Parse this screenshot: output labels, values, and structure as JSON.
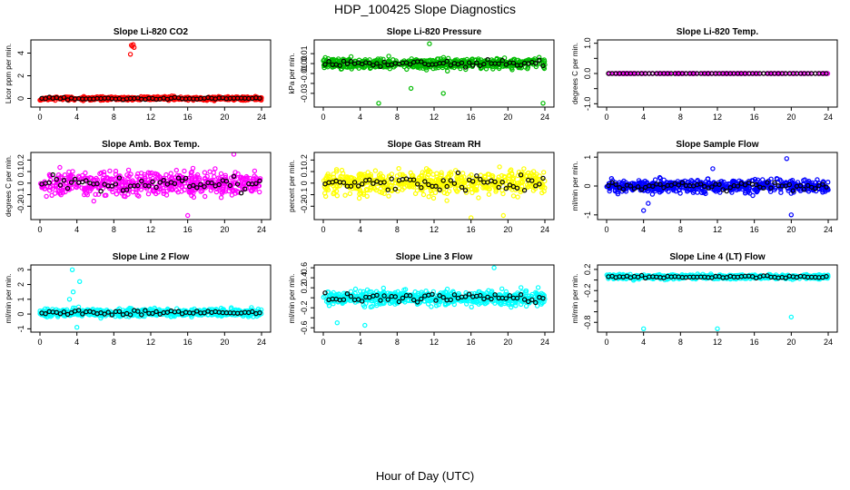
{
  "page": {
    "title": "HDP_100425  Slope Diagnostics",
    "x_axis_title": "Hour of Day (UTC)"
  },
  "chart_data": [
    {
      "id": "co2",
      "type": "scatter",
      "title": "Slope Li-820 CO2",
      "ylabel": "Licor ppm per min.",
      "xlim": [
        0,
        24
      ],
      "ylim": [
        -0.6,
        5
      ],
      "yticks": [
        0,
        2,
        4
      ],
      "color": "#ff0000",
      "spread": 0.15,
      "center": 0.0,
      "n": 600,
      "seed": 11,
      "outliers": [
        [
          9.9,
          4.7
        ],
        [
          10.0,
          4.6
        ],
        [
          10.1,
          4.75
        ],
        [
          9.8,
          3.9
        ],
        [
          10.2,
          4.5
        ]
      ]
    },
    {
      "id": "pressure",
      "type": "scatter",
      "title": "Slope Li-820 Pressure",
      "ylabel": "kPa per min.",
      "xlim": [
        0,
        24
      ],
      "ylim": [
        -0.042,
        0.022
      ],
      "yticks": [
        -0.03,
        -0.02,
        -0.01,
        0.0,
        0.01
      ],
      "yticklabels": [
        "-0.03",
        "",
        "-0.01",
        "0.00",
        "0.01"
      ],
      "color": "#00bb00",
      "spread": 0.005,
      "center": 0.0,
      "n": 600,
      "seed": 23,
      "outliers": [
        [
          6.0,
          -0.04
        ],
        [
          11.5,
          0.02
        ],
        [
          23.8,
          -0.04
        ],
        [
          9.5,
          -0.025
        ],
        [
          13.0,
          -0.03
        ]
      ]
    },
    {
      "id": "temp",
      "type": "scatter",
      "title": "Slope Li-820 Temp.",
      "ylabel": "degrees C per min.",
      "xlim": [
        0,
        24
      ],
      "ylim": [
        -1.05,
        1.05
      ],
      "yticks": [
        -1.0,
        -0.5,
        0.0,
        0.5,
        1.0
      ],
      "yticklabels": [
        "-1.0",
        "",
        "0.0",
        "",
        "1.0"
      ],
      "color": "#ff00ff",
      "spread": 0.0,
      "center": 0.0,
      "n": 160,
      "seed": 5,
      "outliers": []
    },
    {
      "id": "box",
      "type": "scatter",
      "title": "Slope Amb. Box Temp.",
      "ylabel": "degrees C per min.",
      "xlim": [
        0,
        24
      ],
      "ylim": [
        -0.3,
        0.25
      ],
      "yticks": [
        -0.2,
        -0.1,
        0.0,
        0.1,
        0.2
      ],
      "color": "#ff00ff",
      "spread": 0.1,
      "center": 0.0,
      "n": 550,
      "seed": 37,
      "outliers": [
        [
          16.0,
          -0.28
        ],
        [
          21.0,
          0.25
        ]
      ]
    },
    {
      "id": "rh",
      "type": "scatter",
      "title": "Slope Gas Stream RH",
      "ylabel": "percent per min.",
      "xlim": [
        0,
        24
      ],
      "ylim": [
        -0.3,
        0.25
      ],
      "yticks": [
        -0.2,
        -0.1,
        0.0,
        0.1,
        0.2
      ],
      "color": "#ffff00",
      "spread": 0.1,
      "center": 0.0,
      "n": 550,
      "seed": 41,
      "outliers": [
        [
          16.0,
          -0.3
        ],
        [
          19.5,
          -0.28
        ]
      ]
    },
    {
      "id": "sample",
      "type": "scatter",
      "title": "Slope Sample Flow",
      "ylabel": "ml/min per min.",
      "xlim": [
        0,
        24
      ],
      "ylim": [
        -1.1,
        1.1
      ],
      "yticks": [
        -1,
        0,
        1
      ],
      "color": "#0000ff",
      "spread": 0.22,
      "center": 0.0,
      "n": 600,
      "seed": 53,
      "outliers": [
        [
          4.0,
          -0.85
        ],
        [
          19.5,
          0.95
        ],
        [
          20.0,
          -1.0
        ],
        [
          4.5,
          -0.6
        ],
        [
          11.5,
          0.6
        ]
      ]
    },
    {
      "id": "line2",
      "type": "scatter",
      "title": "Slope Line 2 Flow",
      "ylabel": "ml/min per min.",
      "xlim": [
        0,
        24
      ],
      "ylim": [
        -1.1,
        3.2
      ],
      "yticks": [
        -1,
        0,
        1,
        2,
        3
      ],
      "color": "#00ffff",
      "spread": 0.25,
      "center": 0.1,
      "n": 600,
      "seed": 67,
      "outliers": [
        [
          3.5,
          3.0
        ],
        [
          3.6,
          1.5
        ],
        [
          4.3,
          2.2
        ],
        [
          4.0,
          -0.9
        ],
        [
          3.2,
          1.0
        ]
      ]
    },
    {
      "id": "line3",
      "type": "scatter",
      "title": "Slope Line 3 Flow",
      "ylabel": "ml/min per min.",
      "xlim": [
        0,
        24
      ],
      "ylim": [
        -0.65,
        0.62
      ],
      "yticks": [
        -0.6,
        -0.4,
        -0.2,
        0.0,
        0.2,
        0.4,
        0.6
      ],
      "yticklabels": [
        "-0.6",
        "",
        "-0.2",
        "",
        "0.2",
        "0.4",
        "0.6"
      ],
      "color": "#00ffff",
      "spread": 0.14,
      "center": 0.0,
      "n": 600,
      "seed": 79,
      "outliers": [
        [
          18.5,
          0.6
        ],
        [
          4.5,
          -0.55
        ],
        [
          1.5,
          -0.5
        ]
      ]
    },
    {
      "id": "line4",
      "type": "scatter",
      "title": "Slope Line 4 (LT) Flow",
      "ylabel": "ml/min per min.",
      "xlim": [
        0,
        24
      ],
      "ylim": [
        -0.95,
        0.25
      ],
      "yticks": [
        -0.8,
        -0.6,
        -0.4,
        -0.2,
        0.0,
        0.2
      ],
      "yticklabels": [
        "-0.8",
        "",
        "",
        "-0.2",
        "",
        "0.2"
      ],
      "color": "#00ffff",
      "spread": 0.04,
      "center": 0.06,
      "n": 600,
      "seed": 97,
      "outliers": [
        [
          4.0,
          -0.92
        ],
        [
          12.0,
          -0.92
        ],
        [
          20.0,
          -0.7
        ]
      ]
    }
  ],
  "shared_x": {
    "ticks": [
      0,
      4,
      8,
      12,
      16,
      20,
      24
    ]
  }
}
